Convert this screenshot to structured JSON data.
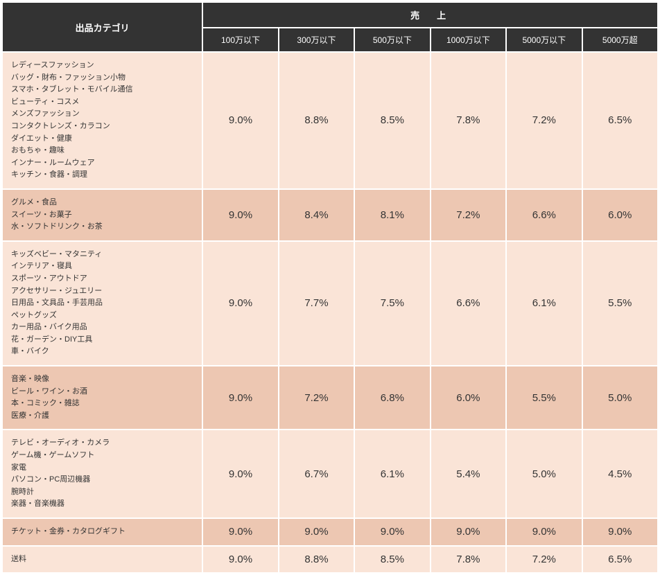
{
  "type": "table",
  "header": {
    "category_label": "出品カテゴリ",
    "sales_label": "売　上",
    "columns": [
      "100万以下",
      "300万以下",
      "500万以下",
      "1000万以下",
      "5000万以下",
      "5000万超"
    ]
  },
  "row_colors": {
    "light": "#fae4d7",
    "dark": "#edc7b2"
  },
  "header_bg": "#333333",
  "header_fg": "#ffffff",
  "border_color": "#ffffff",
  "category_fontsize": 11,
  "value_fontsize": 15,
  "rows": [
    {
      "shade": "light",
      "categories": [
        "レディースファッション",
        "バッグ・財布・ファッション小物",
        "スマホ・タブレット・モバイル通信",
        "ビューティ・コスメ",
        "メンズファッション",
        "コンタクトレンズ・カラコン",
        "ダイエット・健康",
        "おもちゃ・趣味",
        "インナー・ルームウェア",
        "キッチン・食器・調理"
      ],
      "values": [
        "9.0%",
        "8.8%",
        "8.5%",
        "7.8%",
        "7.2%",
        "6.5%"
      ]
    },
    {
      "shade": "dark",
      "categories": [
        "グルメ・食品",
        "スイーツ・お菓子",
        "水・ソフトドリンク・お茶"
      ],
      "values": [
        "9.0%",
        "8.4%",
        "8.1%",
        "7.2%",
        "6.6%",
        "6.0%"
      ]
    },
    {
      "shade": "light",
      "categories": [
        "キッズベビー・マタニティ",
        "インテリア・寝具",
        "スポーツ・アウトドア",
        "アクセサリー・ジュエリー",
        "日用品・文具品・手芸用品",
        "ペットグッズ",
        "カー用品・バイク用品",
        "花・ガーデン・DIY工具",
        "車・バイク"
      ],
      "values": [
        "9.0%",
        "7.7%",
        "7.5%",
        "6.6%",
        "6.1%",
        "5.5%"
      ]
    },
    {
      "shade": "dark",
      "categories": [
        "音楽・映像",
        "ビール・ワイン・お酒",
        "本・コミック・雑誌",
        "医療・介護"
      ],
      "values": [
        "9.0%",
        "7.2%",
        "6.8%",
        "6.0%",
        "5.5%",
        "5.0%"
      ]
    },
    {
      "shade": "light",
      "categories": [
        "テレビ・オーディオ・カメラ",
        "ゲーム機・ゲームソフト",
        "家電",
        "パソコン・PC周辺機器",
        "腕時計",
        "楽器・音楽機器"
      ],
      "values": [
        "9.0%",
        "6.7%",
        "6.1%",
        "5.4%",
        "5.0%",
        "4.5%"
      ]
    },
    {
      "shade": "dark",
      "categories": [
        "チケット・金券・カタログギフト"
      ],
      "values": [
        "9.0%",
        "9.0%",
        "9.0%",
        "9.0%",
        "9.0%",
        "9.0%"
      ]
    },
    {
      "shade": "light",
      "categories": [
        "送料"
      ],
      "values": [
        "9.0%",
        "8.8%",
        "8.5%",
        "7.8%",
        "7.2%",
        "6.5%"
      ]
    }
  ]
}
